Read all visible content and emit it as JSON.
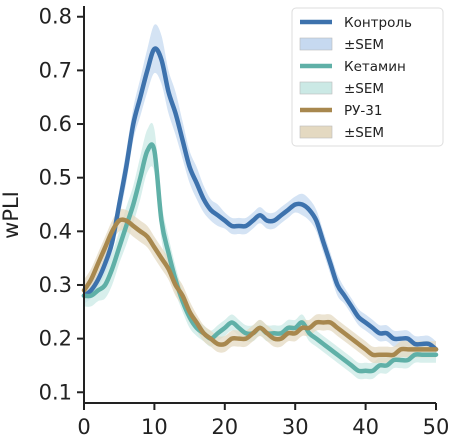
{
  "chart_data": {
    "type": "line",
    "title": "",
    "xlabel": "",
    "ylabel": "wPLI",
    "xlim": [
      0,
      50
    ],
    "ylim": [
      0.08,
      0.82
    ],
    "xticks": [
      0,
      10,
      20,
      30,
      40,
      50
    ],
    "yticks": [
      0.1,
      0.2,
      0.3,
      0.4,
      0.5,
      0.6,
      0.7,
      0.8
    ],
    "xtick_labels": [
      "0",
      "10",
      "20",
      "30",
      "40",
      "50"
    ],
    "ytick_labels": [
      "0.1",
      "0.2",
      "0.3",
      "0.4",
      "0.5",
      "0.6",
      "0.7",
      "0.8"
    ],
    "grid": false,
    "legend_position": "top-right",
    "legend": [
      {
        "label": "Контроль",
        "kind": "line",
        "color": "#3d72ad"
      },
      {
        "label": "±SEM",
        "kind": "band",
        "color": "#c6d9f0"
      },
      {
        "label": "Кетамин",
        "kind": "line",
        "color": "#5fb0a7"
      },
      {
        "label": "±SEM",
        "kind": "band",
        "color": "#cbe9e5"
      },
      {
        "label": "РУ-31",
        "kind": "line",
        "color": "#a8884e"
      },
      {
        "label": "±SEM",
        "kind": "band",
        "color": "#e4d9c1"
      }
    ],
    "series": [
      {
        "name": "Контроль",
        "color": "#3d72ad",
        "band_color": "#c6d9f0",
        "x": [
          0,
          1,
          2,
          3,
          4,
          5,
          6,
          7,
          8,
          9,
          10,
          11,
          12,
          13,
          14,
          15,
          16,
          17,
          18,
          19,
          20,
          21,
          22,
          23,
          24,
          25,
          26,
          27,
          28,
          29,
          30,
          31,
          32,
          33,
          34,
          35,
          36,
          37,
          38,
          39,
          40,
          41,
          42,
          43,
          44,
          45,
          46,
          47,
          48,
          49,
          50
        ],
        "y": [
          0.28,
          0.29,
          0.31,
          0.34,
          0.38,
          0.45,
          0.52,
          0.6,
          0.65,
          0.7,
          0.74,
          0.72,
          0.66,
          0.62,
          0.57,
          0.52,
          0.49,
          0.46,
          0.44,
          0.43,
          0.42,
          0.41,
          0.41,
          0.41,
          0.42,
          0.43,
          0.42,
          0.42,
          0.43,
          0.44,
          0.45,
          0.45,
          0.44,
          0.42,
          0.38,
          0.34,
          0.3,
          0.28,
          0.26,
          0.24,
          0.23,
          0.22,
          0.21,
          0.21,
          0.2,
          0.2,
          0.2,
          0.19,
          0.19,
          0.19,
          0.18
        ],
        "sem": [
          0.015,
          0.015,
          0.015,
          0.02,
          0.02,
          0.025,
          0.03,
          0.03,
          0.035,
          0.04,
          0.045,
          0.045,
          0.04,
          0.04,
          0.035,
          0.03,
          0.03,
          0.025,
          0.02,
          0.02,
          0.015,
          0.015,
          0.015,
          0.015,
          0.015,
          0.015,
          0.015,
          0.015,
          0.015,
          0.015,
          0.015,
          0.02,
          0.02,
          0.02,
          0.02,
          0.02,
          0.02,
          0.015,
          0.015,
          0.015,
          0.015,
          0.015,
          0.015,
          0.015,
          0.015,
          0.015,
          0.015,
          0.015,
          0.015,
          0.015,
          0.015
        ]
      },
      {
        "name": "Кетамин",
        "color": "#5fb0a7",
        "band_color": "#cbe9e5",
        "x": [
          0,
          1,
          2,
          3,
          4,
          5,
          6,
          7,
          8,
          9,
          10,
          11,
          12,
          13,
          14,
          15,
          16,
          17,
          18,
          19,
          20,
          21,
          22,
          23,
          24,
          25,
          26,
          27,
          28,
          29,
          30,
          31,
          32,
          33,
          34,
          35,
          36,
          37,
          38,
          39,
          40,
          41,
          42,
          43,
          44,
          45,
          46,
          47,
          48,
          49,
          50
        ],
        "y": [
          0.28,
          0.28,
          0.29,
          0.3,
          0.33,
          0.37,
          0.41,
          0.45,
          0.5,
          0.55,
          0.55,
          0.42,
          0.36,
          0.31,
          0.27,
          0.24,
          0.22,
          0.21,
          0.2,
          0.21,
          0.22,
          0.23,
          0.22,
          0.21,
          0.21,
          0.22,
          0.21,
          0.21,
          0.21,
          0.22,
          0.22,
          0.23,
          0.21,
          0.2,
          0.19,
          0.18,
          0.17,
          0.16,
          0.15,
          0.14,
          0.14,
          0.14,
          0.15,
          0.15,
          0.16,
          0.16,
          0.16,
          0.17,
          0.17,
          0.17,
          0.17
        ],
        "sem": [
          0.02,
          0.02,
          0.02,
          0.025,
          0.03,
          0.03,
          0.035,
          0.035,
          0.04,
          0.04,
          0.04,
          0.035,
          0.03,
          0.025,
          0.02,
          0.02,
          0.015,
          0.015,
          0.015,
          0.015,
          0.015,
          0.015,
          0.015,
          0.015,
          0.015,
          0.015,
          0.015,
          0.015,
          0.015,
          0.015,
          0.015,
          0.015,
          0.015,
          0.015,
          0.015,
          0.015,
          0.015,
          0.015,
          0.015,
          0.015,
          0.015,
          0.015,
          0.015,
          0.015,
          0.015,
          0.015,
          0.015,
          0.015,
          0.015,
          0.015,
          0.015
        ]
      },
      {
        "name": "РУ-31",
        "color": "#a8884e",
        "band_color": "#e4d9c1",
        "x": [
          0,
          1,
          2,
          3,
          4,
          5,
          6,
          7,
          8,
          9,
          10,
          11,
          12,
          13,
          14,
          15,
          16,
          17,
          18,
          19,
          20,
          21,
          22,
          23,
          24,
          25,
          26,
          27,
          28,
          29,
          30,
          31,
          32,
          33,
          34,
          35,
          36,
          37,
          38,
          39,
          40,
          41,
          42,
          43,
          44,
          45,
          46,
          47,
          48,
          49,
          50
        ],
        "y": [
          0.29,
          0.31,
          0.34,
          0.37,
          0.4,
          0.42,
          0.42,
          0.41,
          0.4,
          0.39,
          0.37,
          0.35,
          0.33,
          0.3,
          0.28,
          0.25,
          0.23,
          0.21,
          0.2,
          0.19,
          0.19,
          0.2,
          0.2,
          0.2,
          0.21,
          0.22,
          0.21,
          0.2,
          0.2,
          0.21,
          0.21,
          0.22,
          0.22,
          0.23,
          0.23,
          0.23,
          0.22,
          0.21,
          0.2,
          0.19,
          0.18,
          0.17,
          0.17,
          0.17,
          0.17,
          0.18,
          0.18,
          0.18,
          0.18,
          0.18,
          0.18
        ],
        "sem": [
          0.02,
          0.02,
          0.02,
          0.02,
          0.02,
          0.02,
          0.02,
          0.02,
          0.02,
          0.02,
          0.02,
          0.02,
          0.02,
          0.02,
          0.02,
          0.02,
          0.015,
          0.015,
          0.015,
          0.015,
          0.015,
          0.015,
          0.015,
          0.015,
          0.015,
          0.015,
          0.015,
          0.015,
          0.015,
          0.015,
          0.015,
          0.015,
          0.015,
          0.015,
          0.015,
          0.015,
          0.015,
          0.015,
          0.015,
          0.015,
          0.015,
          0.015,
          0.015,
          0.015,
          0.015,
          0.015,
          0.015,
          0.015,
          0.015,
          0.015,
          0.015
        ]
      }
    ]
  }
}
